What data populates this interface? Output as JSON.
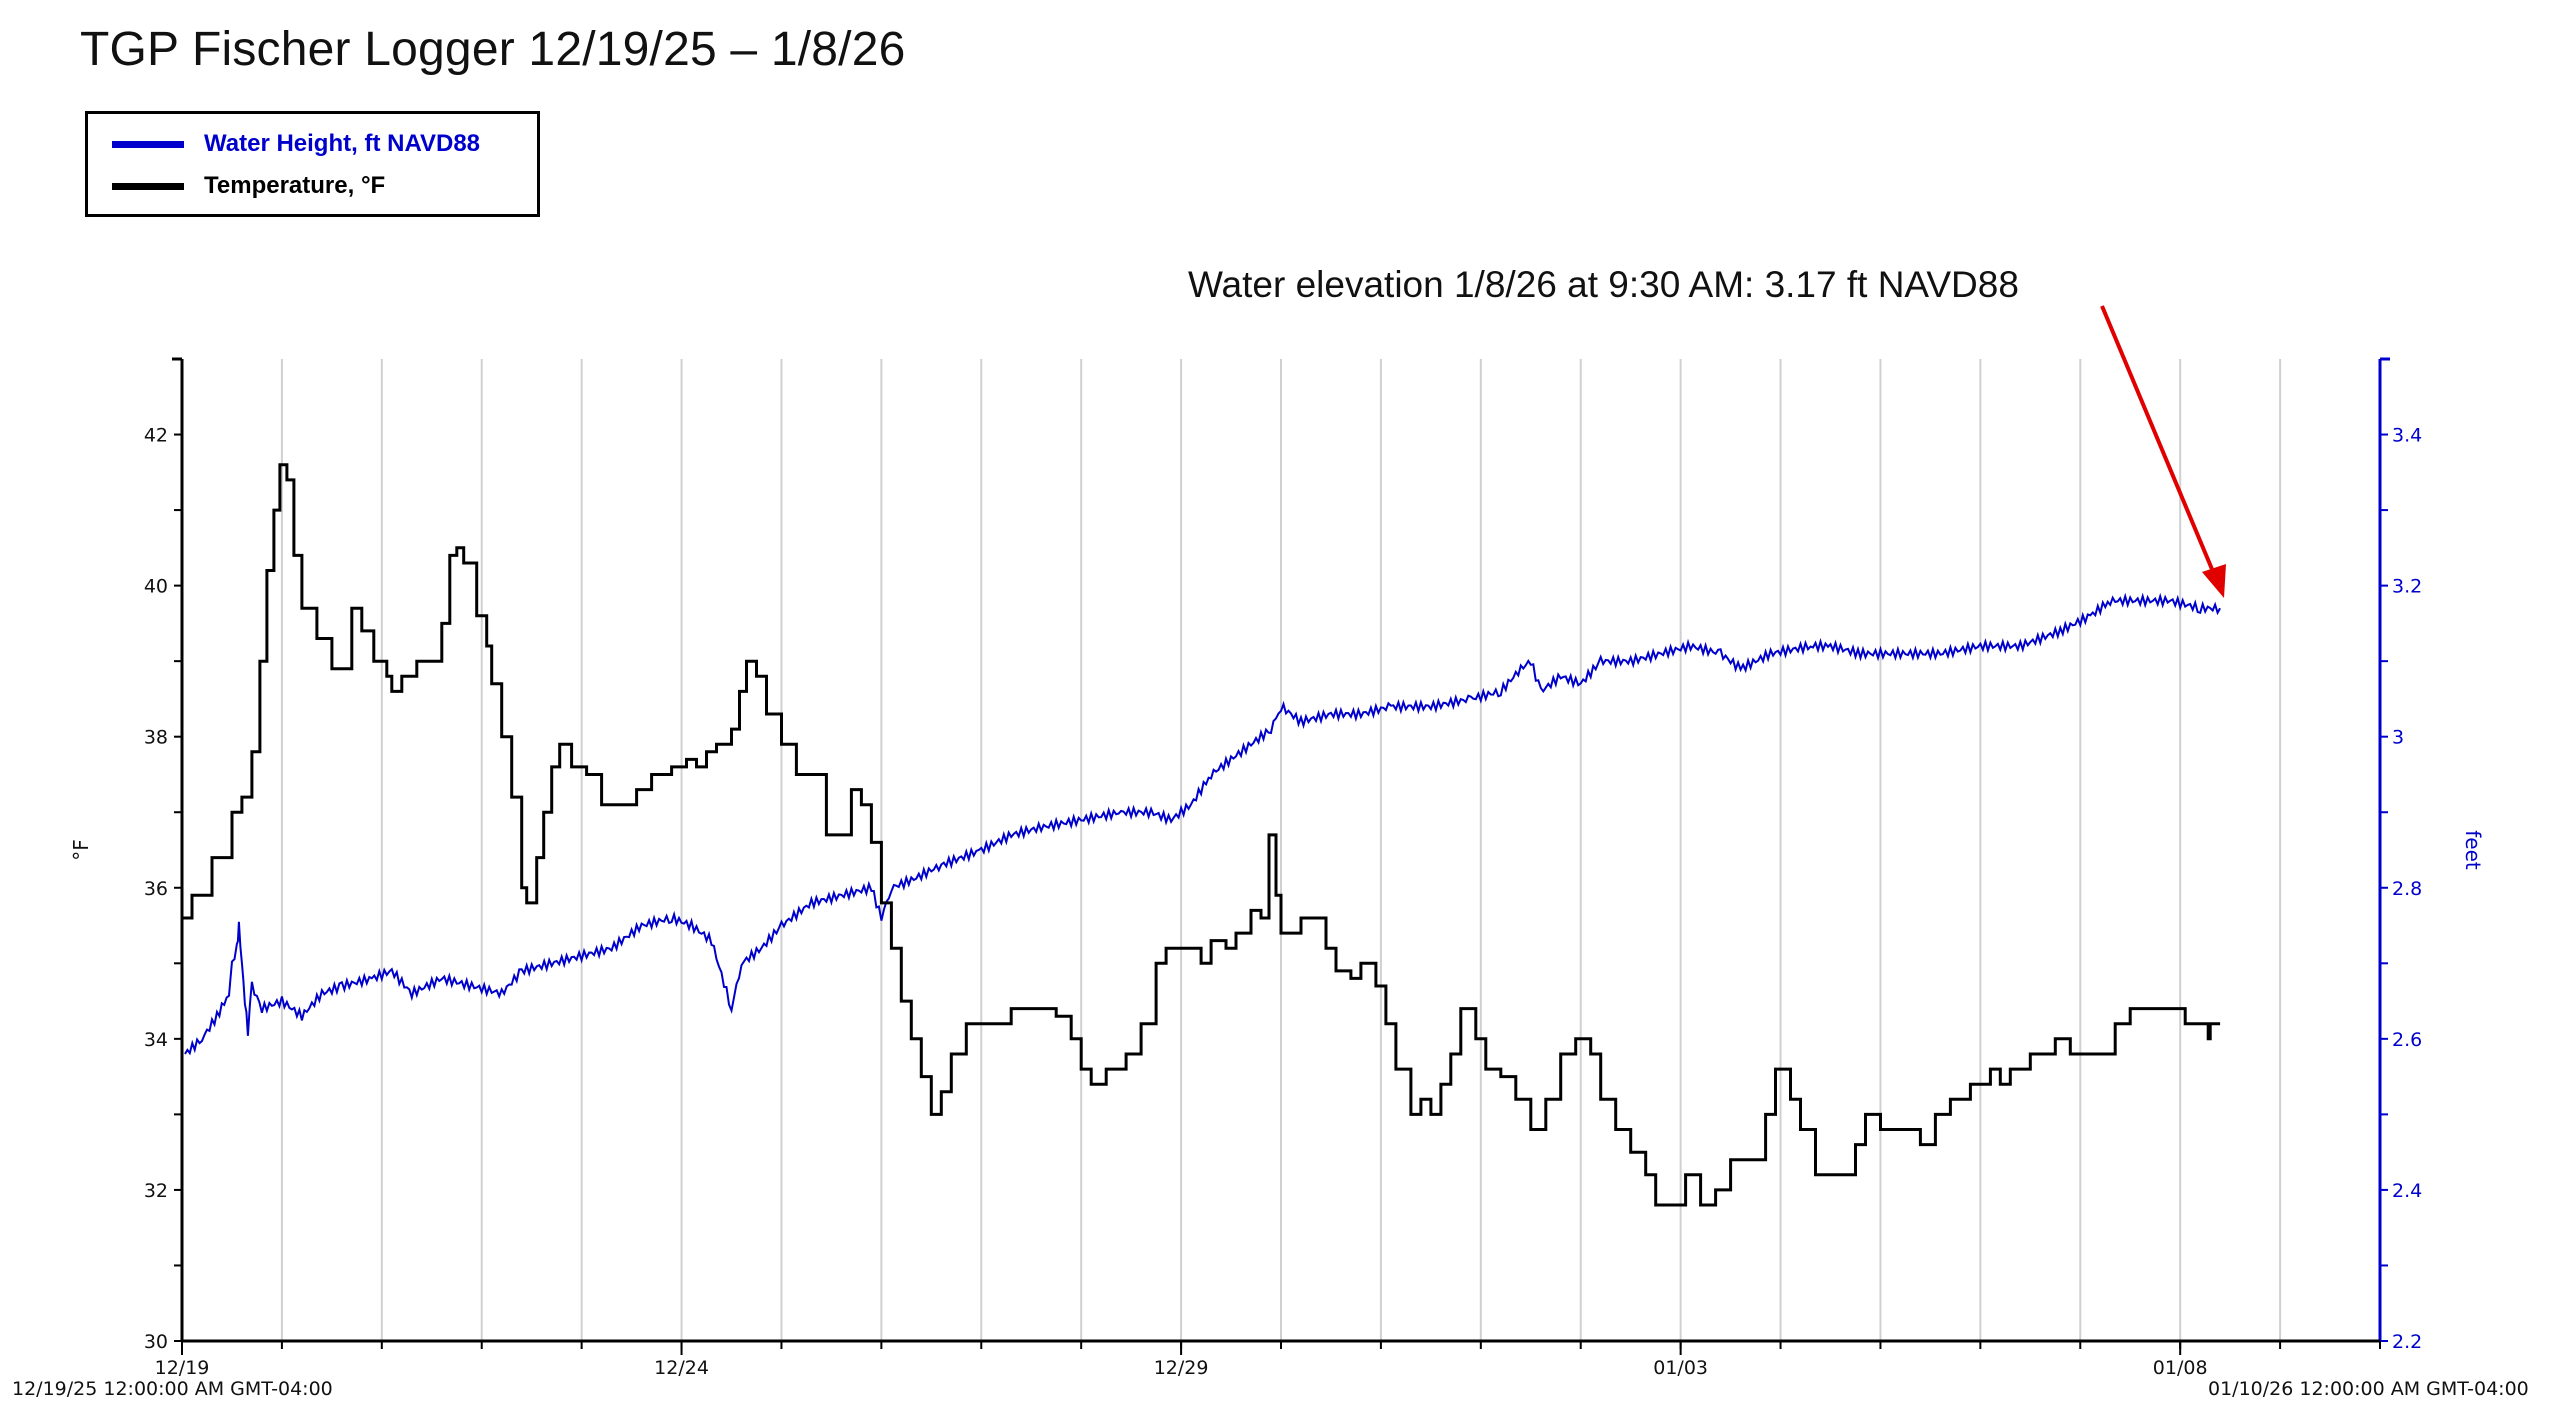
{
  "title": "TGP Fischer Logger 12/19/25 – 1/8/26",
  "legend": {
    "items": [
      {
        "label": "Water Height, ft NAVD88",
        "color": "#0000CC"
      },
      {
        "label": "Temperature, °F",
        "color": "#000000"
      }
    ]
  },
  "annotation": {
    "text": "Water elevation 1/8/26 at 9:30 AM: 3.17 ft NAVD88",
    "arrow_color": "#E00000"
  },
  "x_axis": {
    "start_label": "12/19/25 12:00:00 AM GMT-04:00",
    "end_label": "01/10/26 12:00:00 AM GMT-04:00"
  },
  "chart_data": {
    "type": "line",
    "title": "TGP Fischer Logger 12/19/25 – 1/8/26",
    "xlabel": "",
    "x_unit": "days since 12/19/25 12:00 AM",
    "x_range": [
      0,
      22
    ],
    "x_ticks": [
      {
        "day": 0,
        "label": "12/19"
      },
      {
        "day": 5,
        "label": "12/24"
      },
      {
        "day": 10,
        "label": "12/29"
      },
      {
        "day": 15,
        "label": "01/03"
      },
      {
        "day": 20,
        "label": "01/08"
      }
    ],
    "grid": {
      "vertical_every_days": 1,
      "horizontal": false
    },
    "y_left": {
      "label": "°F",
      "range": [
        30,
        43
      ],
      "ticks": [
        30,
        32,
        34,
        36,
        38,
        40,
        42
      ],
      "minor_step": 1,
      "color": "#000000"
    },
    "y_right": {
      "label": "feet",
      "range": [
        2.2,
        3.5
      ],
      "ticks": [
        2.2,
        2.4,
        2.6,
        2.8,
        3,
        3.2,
        3.4
      ],
      "minor_step": 0.1,
      "color": "#0000CC"
    },
    "legend_position": "top-left",
    "series": [
      {
        "name": "Water Height, ft NAVD88",
        "axis": "right",
        "color": "#0000CC",
        "points": [
          [
            0.03,
            2.58
          ],
          [
            0.2,
            2.6
          ],
          [
            0.35,
            2.63
          ],
          [
            0.47,
            2.66
          ],
          [
            0.5,
            2.7
          ],
          [
            0.55,
            2.72
          ],
          [
            0.57,
            2.75
          ],
          [
            0.6,
            2.7
          ],
          [
            0.63,
            2.65
          ],
          [
            0.66,
            2.61
          ],
          [
            0.7,
            2.67
          ],
          [
            0.8,
            2.64
          ],
          [
            1.0,
            2.65
          ],
          [
            1.2,
            2.63
          ],
          [
            1.4,
            2.66
          ],
          [
            1.6,
            2.67
          ],
          [
            1.9,
            2.68
          ],
          [
            2.1,
            2.69
          ],
          [
            2.3,
            2.66
          ],
          [
            2.6,
            2.68
          ],
          [
            2.9,
            2.67
          ],
          [
            3.2,
            2.66
          ],
          [
            3.4,
            2.69
          ],
          [
            3.7,
            2.7
          ],
          [
            4.0,
            2.71
          ],
          [
            4.3,
            2.72
          ],
          [
            4.6,
            2.75
          ],
          [
            4.9,
            2.76
          ],
          [
            5.1,
            2.75
          ],
          [
            5.3,
            2.73
          ],
          [
            5.5,
            2.64
          ],
          [
            5.6,
            2.7
          ],
          [
            5.8,
            2.72
          ],
          [
            6.0,
            2.75
          ],
          [
            6.3,
            2.78
          ],
          [
            6.6,
            2.79
          ],
          [
            6.9,
            2.8
          ],
          [
            7.0,
            2.76
          ],
          [
            7.1,
            2.8
          ],
          [
            7.3,
            2.81
          ],
          [
            7.6,
            2.83
          ],
          [
            8.0,
            2.85
          ],
          [
            8.3,
            2.87
          ],
          [
            8.6,
            2.88
          ],
          [
            9.0,
            2.89
          ],
          [
            9.4,
            2.9
          ],
          [
            9.7,
            2.9
          ],
          [
            9.9,
            2.89
          ],
          [
            10.1,
            2.91
          ],
          [
            10.3,
            2.95
          ],
          [
            10.6,
            2.98
          ],
          [
            10.9,
            3.01
          ],
          [
            11.0,
            3.04
          ],
          [
            11.2,
            3.02
          ],
          [
            11.5,
            3.03
          ],
          [
            11.8,
            3.03
          ],
          [
            12.1,
            3.04
          ],
          [
            12.5,
            3.04
          ],
          [
            12.9,
            3.05
          ],
          [
            13.2,
            3.06
          ],
          [
            13.4,
            3.09
          ],
          [
            13.5,
            3.1
          ],
          [
            13.6,
            3.06
          ],
          [
            13.8,
            3.08
          ],
          [
            14.0,
            3.07
          ],
          [
            14.2,
            3.1
          ],
          [
            14.5,
            3.1
          ],
          [
            14.8,
            3.11
          ],
          [
            15.1,
            3.12
          ],
          [
            15.4,
            3.11
          ],
          [
            15.6,
            3.09
          ],
          [
            15.9,
            3.11
          ],
          [
            16.3,
            3.12
          ],
          [
            16.5,
            3.12
          ],
          [
            16.8,
            3.11
          ],
          [
            17.2,
            3.11
          ],
          [
            17.6,
            3.11
          ],
          [
            18.0,
            3.12
          ],
          [
            18.4,
            3.12
          ],
          [
            18.8,
            3.14
          ],
          [
            19.1,
            3.16
          ],
          [
            19.3,
            3.18
          ],
          [
            19.6,
            3.18
          ],
          [
            19.9,
            3.18
          ],
          [
            20.2,
            3.17
          ],
          [
            20.4,
            3.17
          ]
        ]
      },
      {
        "name": "Temperature, °F",
        "axis": "left",
        "color": "#000000",
        "points": [
          [
            0.0,
            35.6
          ],
          [
            0.1,
            35.9
          ],
          [
            0.3,
            36.4
          ],
          [
            0.5,
            37.0
          ],
          [
            0.6,
            37.2
          ],
          [
            0.7,
            37.8
          ],
          [
            0.78,
            39.0
          ],
          [
            0.85,
            40.2
          ],
          [
            0.92,
            41.0
          ],
          [
            0.98,
            41.6
          ],
          [
            1.05,
            41.4
          ],
          [
            1.12,
            40.4
          ],
          [
            1.2,
            39.7
          ],
          [
            1.35,
            39.3
          ],
          [
            1.5,
            38.9
          ],
          [
            1.62,
            38.9
          ],
          [
            1.7,
            39.7
          ],
          [
            1.8,
            39.4
          ],
          [
            1.92,
            39.0
          ],
          [
            2.05,
            38.8
          ],
          [
            2.1,
            38.6
          ],
          [
            2.2,
            38.8
          ],
          [
            2.35,
            39.0
          ],
          [
            2.5,
            39.0
          ],
          [
            2.6,
            39.5
          ],
          [
            2.68,
            40.4
          ],
          [
            2.75,
            40.5
          ],
          [
            2.82,
            40.3
          ],
          [
            2.95,
            39.6
          ],
          [
            3.05,
            39.2
          ],
          [
            3.1,
            38.7
          ],
          [
            3.2,
            38.0
          ],
          [
            3.3,
            37.2
          ],
          [
            3.4,
            36.0
          ],
          [
            3.45,
            35.8
          ],
          [
            3.55,
            36.4
          ],
          [
            3.62,
            37.0
          ],
          [
            3.7,
            37.6
          ],
          [
            3.78,
            37.9
          ],
          [
            3.9,
            37.6
          ],
          [
            4.05,
            37.5
          ],
          [
            4.2,
            37.1
          ],
          [
            4.4,
            37.1
          ],
          [
            4.55,
            37.3
          ],
          [
            4.7,
            37.5
          ],
          [
            4.9,
            37.6
          ],
          [
            5.05,
            37.7
          ],
          [
            5.15,
            37.6
          ],
          [
            5.25,
            37.8
          ],
          [
            5.35,
            37.9
          ],
          [
            5.5,
            38.1
          ],
          [
            5.58,
            38.6
          ],
          [
            5.65,
            39.0
          ],
          [
            5.75,
            38.8
          ],
          [
            5.85,
            38.3
          ],
          [
            6.0,
            37.9
          ],
          [
            6.15,
            37.5
          ],
          [
            6.3,
            37.5
          ],
          [
            6.45,
            36.7
          ],
          [
            6.6,
            36.7
          ],
          [
            6.7,
            37.3
          ],
          [
            6.8,
            37.1
          ],
          [
            6.9,
            36.6
          ],
          [
            7.0,
            35.8
          ],
          [
            7.1,
            35.2
          ],
          [
            7.2,
            34.5
          ],
          [
            7.3,
            34.0
          ],
          [
            7.4,
            33.5
          ],
          [
            7.5,
            33.0
          ],
          [
            7.6,
            33.3
          ],
          [
            7.7,
            33.8
          ],
          [
            7.85,
            34.2
          ],
          [
            8.1,
            34.2
          ],
          [
            8.3,
            34.4
          ],
          [
            8.6,
            34.4
          ],
          [
            8.75,
            34.3
          ],
          [
            8.9,
            34.0
          ],
          [
            9.0,
            33.6
          ],
          [
            9.1,
            33.4
          ],
          [
            9.25,
            33.6
          ],
          [
            9.45,
            33.8
          ],
          [
            9.6,
            34.2
          ],
          [
            9.75,
            35.0
          ],
          [
            9.85,
            35.2
          ],
          [
            10.05,
            35.2
          ],
          [
            10.2,
            35.0
          ],
          [
            10.3,
            35.3
          ],
          [
            10.45,
            35.2
          ],
          [
            10.55,
            35.4
          ],
          [
            10.7,
            35.7
          ],
          [
            10.8,
            35.6
          ],
          [
            10.88,
            36.7
          ],
          [
            10.95,
            35.9
          ],
          [
            11.0,
            35.4
          ],
          [
            11.2,
            35.6
          ],
          [
            11.35,
            35.6
          ],
          [
            11.45,
            35.2
          ],
          [
            11.55,
            34.9
          ],
          [
            11.7,
            34.8
          ],
          [
            11.8,
            35.0
          ],
          [
            11.95,
            34.7
          ],
          [
            12.05,
            34.2
          ],
          [
            12.15,
            33.6
          ],
          [
            12.3,
            33.0
          ],
          [
            12.4,
            33.2
          ],
          [
            12.5,
            33.0
          ],
          [
            12.6,
            33.4
          ],
          [
            12.7,
            33.8
          ],
          [
            12.8,
            34.4
          ],
          [
            12.95,
            34.0
          ],
          [
            13.05,
            33.6
          ],
          [
            13.2,
            33.5
          ],
          [
            13.35,
            33.2
          ],
          [
            13.5,
            32.8
          ],
          [
            13.65,
            33.2
          ],
          [
            13.8,
            33.8
          ],
          [
            13.95,
            34.0
          ],
          [
            14.1,
            33.8
          ],
          [
            14.2,
            33.2
          ],
          [
            14.35,
            32.8
          ],
          [
            14.5,
            32.5
          ],
          [
            14.65,
            32.2
          ],
          [
            14.75,
            31.8
          ],
          [
            14.95,
            31.8
          ],
          [
            15.05,
            32.2
          ],
          [
            15.2,
            31.8
          ],
          [
            15.35,
            32.0
          ],
          [
            15.5,
            32.4
          ],
          [
            15.7,
            32.4
          ],
          [
            15.85,
            33.0
          ],
          [
            15.95,
            33.6
          ],
          [
            16.1,
            33.2
          ],
          [
            16.2,
            32.8
          ],
          [
            16.35,
            32.2
          ],
          [
            16.6,
            32.2
          ],
          [
            16.75,
            32.6
          ],
          [
            16.85,
            33.0
          ],
          [
            17.0,
            32.8
          ],
          [
            17.25,
            32.8
          ],
          [
            17.4,
            32.6
          ],
          [
            17.55,
            33.0
          ],
          [
            17.7,
            33.2
          ],
          [
            17.9,
            33.4
          ],
          [
            18.1,
            33.6
          ],
          [
            18.2,
            33.4
          ],
          [
            18.3,
            33.6
          ],
          [
            18.5,
            33.8
          ],
          [
            18.75,
            34.0
          ],
          [
            18.9,
            33.8
          ],
          [
            19.2,
            33.8
          ],
          [
            19.35,
            34.2
          ],
          [
            19.5,
            34.4
          ],
          [
            19.75,
            34.4
          ],
          [
            19.95,
            34.4
          ],
          [
            20.05,
            34.2
          ],
          [
            20.2,
            34.2
          ],
          [
            20.28,
            34.0
          ],
          [
            20.3,
            34.2
          ],
          [
            20.4,
            34.2
          ]
        ]
      }
    ],
    "annotations": [
      {
        "text": "Water elevation 1/8/26 at 9:30 AM: 3.17 ft NAVD88",
        "points_to": {
          "day": 20.4,
          "value": 3.17,
          "axis": "right"
        }
      }
    ]
  }
}
